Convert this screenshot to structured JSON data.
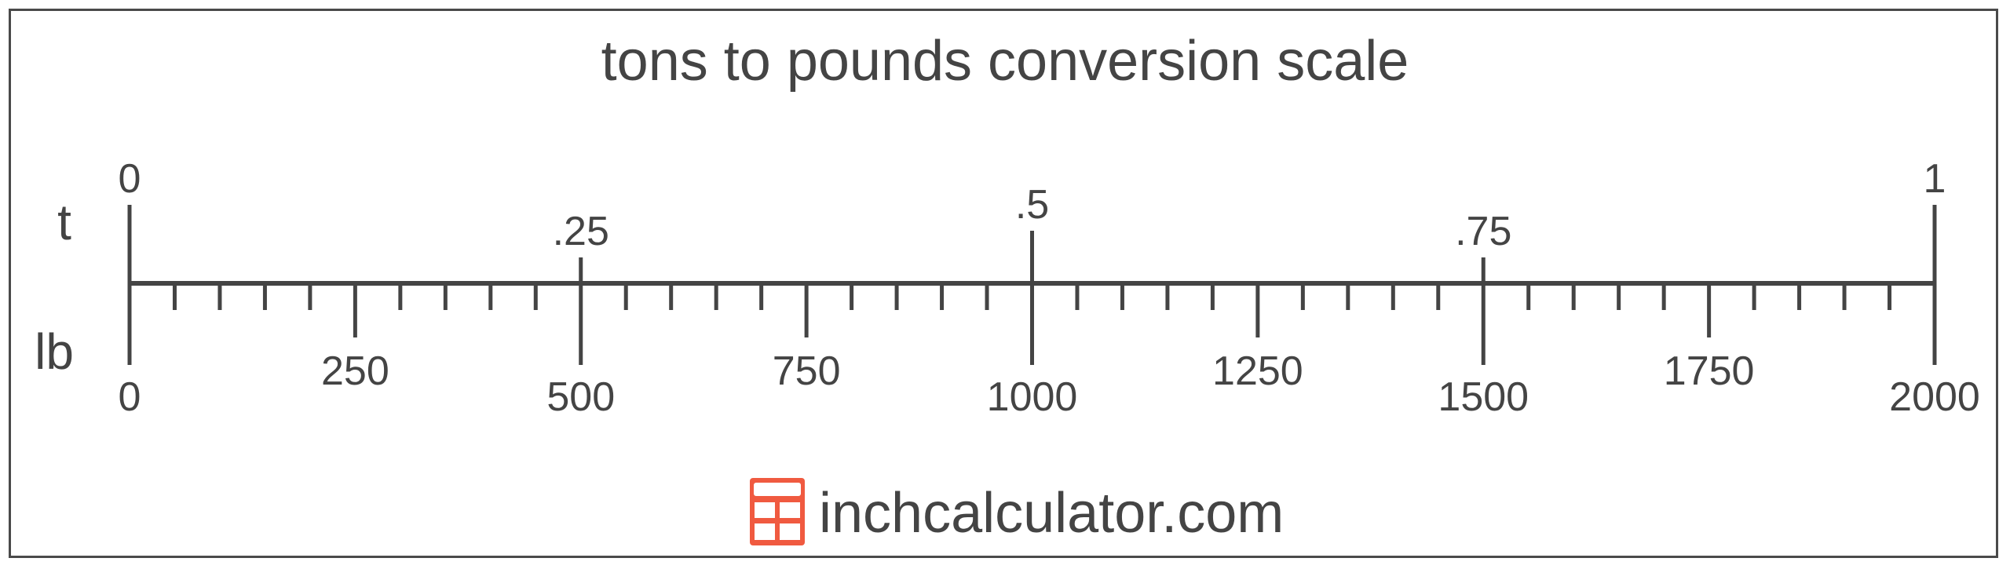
{
  "title": "tons to pounds conversion scale",
  "scale": {
    "top_unit": "t",
    "bottom_unit": "lb",
    "tons_per_unit": 1,
    "pounds_per_ton": 2000,
    "ton_labels": [
      {
        "value": 0,
        "label": "0"
      },
      {
        "value": 0.25,
        "label": ".25"
      },
      {
        "value": 0.5,
        "label": ".5"
      },
      {
        "value": 0.75,
        "label": ".75"
      },
      {
        "value": 1,
        "label": "1"
      }
    ],
    "pound_labels": [
      {
        "value": 0,
        "label": "0"
      },
      {
        "value": 250,
        "label": "250"
      },
      {
        "value": 500,
        "label": "500"
      },
      {
        "value": 750,
        "label": "750"
      },
      {
        "value": 1000,
        "label": "1000"
      },
      {
        "value": 1250,
        "label": "1250"
      },
      {
        "value": 1500,
        "label": "1500"
      },
      {
        "value": 1750,
        "label": "1750"
      },
      {
        "value": 2000,
        "label": "2000"
      }
    ],
    "pound_minor_step": 50
  },
  "footer": {
    "brand": "inchcalculator.com",
    "icon": "calculator-icon",
    "icon_color": "#f05a40"
  },
  "colors": {
    "ink": "#444444"
  }
}
